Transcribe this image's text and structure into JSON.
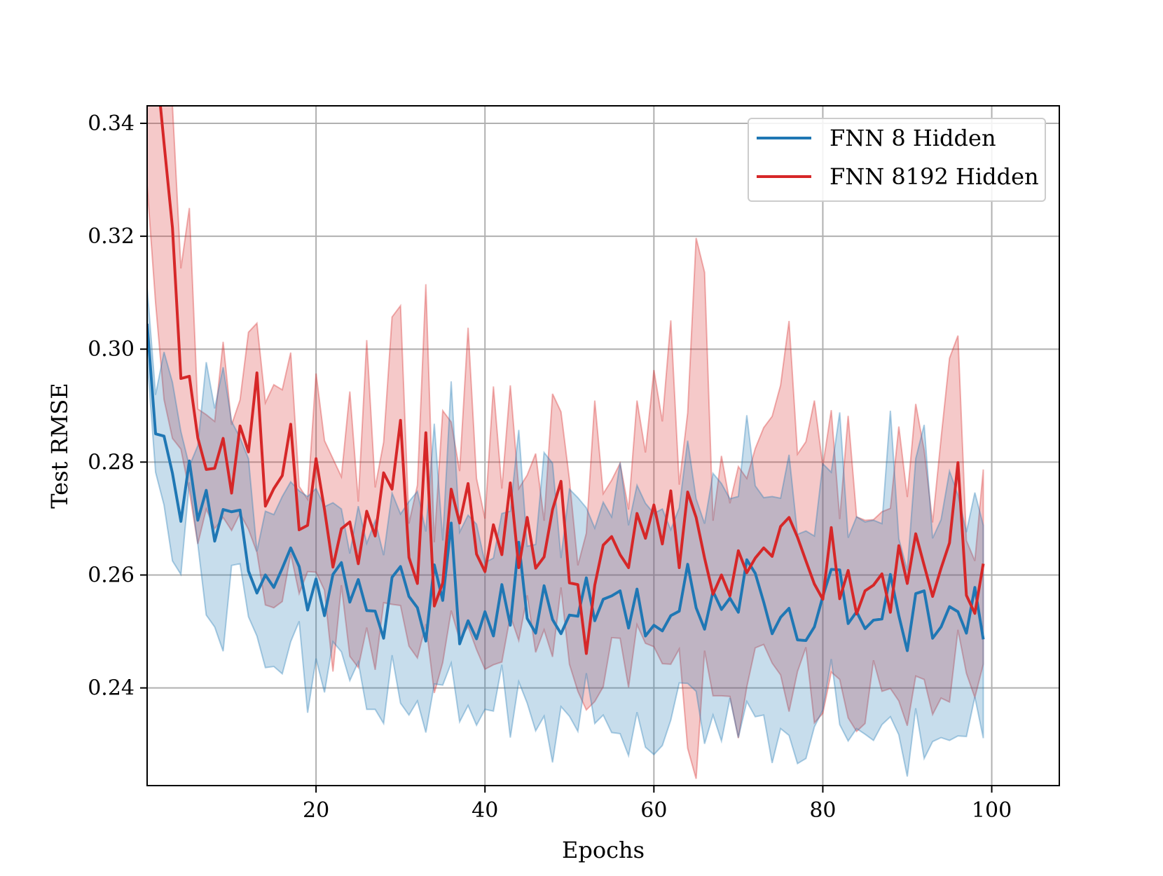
{
  "chart_data": {
    "type": "line",
    "title": "",
    "xlabel": "Epochs",
    "ylabel": "Test RMSE",
    "xlim": [
      0,
      108
    ],
    "ylim": [
      0.2227,
      0.3431
    ],
    "xticks": [
      20,
      40,
      60,
      80,
      100
    ],
    "xtick_labels": [
      "20",
      "40",
      "60",
      "80",
      "100"
    ],
    "yticks": [
      0.24,
      0.26,
      0.28,
      0.3,
      0.32,
      0.34
    ],
    "ytick_labels": [
      "0.24",
      "0.26",
      "0.28",
      "0.30",
      "0.32",
      "0.34"
    ],
    "grid": true,
    "legend_position": "top-right",
    "x": [
      0,
      1,
      2,
      3,
      4,
      5,
      6,
      7,
      8,
      9,
      10,
      11,
      12,
      13,
      14,
      15,
      16,
      17,
      18,
      19,
      20,
      21,
      22,
      23,
      24,
      25,
      26,
      27,
      28,
      29,
      30,
      31,
      32,
      33,
      34,
      35,
      36,
      37,
      38,
      39,
      40,
      41,
      42,
      43,
      44,
      45,
      46,
      47,
      48,
      49,
      50,
      51,
      52,
      53,
      54,
      55,
      56,
      57,
      58,
      59,
      60,
      61,
      62,
      63,
      64,
      65,
      66,
      67,
      68,
      69,
      70,
      71,
      72,
      73,
      74,
      75,
      76,
      77,
      78,
      79,
      80,
      81,
      82,
      83,
      84,
      85,
      86,
      87,
      88,
      89,
      90,
      91,
      92,
      93,
      94,
      95,
      96,
      97,
      98,
      99
    ],
    "series": [
      {
        "name": "FNN 8 Hidden",
        "color": "#1f77b4",
        "fill_color": "#1f77b4",
        "values": [
          0.3045,
          0.285,
          0.2846,
          0.278,
          0.2695,
          0.2802,
          0.2697,
          0.275,
          0.266,
          0.2716,
          0.2712,
          0.2715,
          0.2607,
          0.2568,
          0.26,
          0.2578,
          0.2612,
          0.2648,
          0.2615,
          0.2538,
          0.2593,
          0.2528,
          0.2601,
          0.2622,
          0.2552,
          0.2592,
          0.2537,
          0.2536,
          0.2488,
          0.2596,
          0.2615,
          0.2562,
          0.2542,
          0.2483,
          0.2618,
          0.2555,
          0.2692,
          0.2478,
          0.2519,
          0.2487,
          0.2535,
          0.2492,
          0.2583,
          0.2511,
          0.2658,
          0.2523,
          0.2497,
          0.2581,
          0.2521,
          0.2496,
          0.2529,
          0.2527,
          0.2595,
          0.2519,
          0.2557,
          0.2563,
          0.2572,
          0.2506,
          0.2575,
          0.2492,
          0.2511,
          0.2501,
          0.2528,
          0.2536,
          0.2619,
          0.2542,
          0.2504,
          0.2571,
          0.2539,
          0.2559,
          0.2534,
          0.2627,
          0.2603,
          0.2552,
          0.2496,
          0.2525,
          0.2541,
          0.2485,
          0.2484,
          0.2508,
          0.2562,
          0.261,
          0.2609,
          0.2514,
          0.2535,
          0.2505,
          0.252,
          0.2522,
          0.2601,
          0.2528,
          0.2466,
          0.2567,
          0.2572,
          0.2488,
          0.2508,
          0.2544,
          0.2535,
          0.2497,
          0.2578,
          0.2486
        ]
      },
      {
        "name": "FNN 8192 Hidden",
        "color": "#d62728",
        "fill_color": "#d62728",
        "values": [
          0.36,
          0.352,
          0.3365,
          0.3215,
          0.2948,
          0.2952,
          0.2843,
          0.2787,
          0.2789,
          0.2842,
          0.2745,
          0.2864,
          0.2818,
          0.2958,
          0.2722,
          0.2753,
          0.2776,
          0.2867,
          0.268,
          0.2688,
          0.2806,
          0.2716,
          0.2614,
          0.2682,
          0.2694,
          0.262,
          0.2713,
          0.2669,
          0.2781,
          0.2752,
          0.2874,
          0.2631,
          0.2585,
          0.2852,
          0.2545,
          0.2586,
          0.2752,
          0.2692,
          0.2762,
          0.2637,
          0.2606,
          0.2689,
          0.2636,
          0.2763,
          0.2613,
          0.2702,
          0.2612,
          0.2632,
          0.2716,
          0.2766,
          0.2586,
          0.2583,
          0.2461,
          0.2582,
          0.2653,
          0.2668,
          0.2636,
          0.2613,
          0.2709,
          0.2665,
          0.2724,
          0.2655,
          0.2749,
          0.2613,
          0.2747,
          0.2702,
          0.263,
          0.2566,
          0.26,
          0.2563,
          0.2643,
          0.2604,
          0.263,
          0.2648,
          0.2633,
          0.2686,
          0.2702,
          0.2667,
          0.2625,
          0.2584,
          0.2557,
          0.2684,
          0.2558,
          0.2608,
          0.2531,
          0.2572,
          0.2582,
          0.2602,
          0.2534,
          0.2652,
          0.2585,
          0.2673,
          0.2617,
          0.2562,
          0.2612,
          0.2657,
          0.2799,
          0.2564,
          0.2532,
          0.262
        ]
      }
    ],
    "bands": [
      {
        "series": "FNN 8 Hidden",
        "upper": [
          0.311,
          0.2919,
          0.2995,
          0.2941,
          0.2854,
          0.2793,
          0.2829,
          0.2977,
          0.2895,
          0.2968,
          0.2872,
          0.2843,
          0.2806,
          0.2642,
          0.2713,
          0.2707,
          0.2739,
          0.2765,
          0.2749,
          0.2739,
          0.2753,
          0.2721,
          0.2728,
          0.2717,
          0.2638,
          0.2722,
          0.2656,
          0.2696,
          0.2635,
          0.2745,
          0.2708,
          0.273,
          0.2748,
          0.2677,
          0.2868,
          0.2661,
          0.2943,
          0.2676,
          0.2706,
          0.269,
          0.2622,
          0.263,
          0.2709,
          0.2713,
          0.2857,
          0.2651,
          0.2654,
          0.2817,
          0.2798,
          0.263,
          0.2752,
          0.2737,
          0.2719,
          0.2683,
          0.2729,
          0.2703,
          0.2799,
          0.2688,
          0.2759,
          0.2727,
          0.2709,
          0.2717,
          0.268,
          0.2719,
          0.2838,
          0.2735,
          0.2691,
          0.278,
          0.2762,
          0.2735,
          0.2739,
          0.2883,
          0.2758,
          0.2737,
          0.2739,
          0.2736,
          0.2813,
          0.2672,
          0.2678,
          0.2669,
          0.2797,
          0.2782,
          0.2888,
          0.2666,
          0.2703,
          0.2694,
          0.2697,
          0.2691,
          0.2891,
          0.2664,
          0.2608,
          0.2806,
          0.2866,
          0.2665,
          0.2698,
          0.2784,
          0.2742,
          0.2676,
          0.2746,
          0.2688
        ]
      },
      {
        "series": "FNN 8 Hidden",
        "lower": [
          0.2983,
          0.2782,
          0.2724,
          0.2625,
          0.2601,
          0.2764,
          0.2655,
          0.2529,
          0.2508,
          0.2465,
          0.2617,
          0.262,
          0.2526,
          0.2492,
          0.2436,
          0.2438,
          0.2425,
          0.2482,
          0.2518,
          0.2356,
          0.2452,
          0.2392,
          0.2482,
          0.2464,
          0.2413,
          0.2446,
          0.2362,
          0.2362,
          0.2337,
          0.2458,
          0.2373,
          0.2352,
          0.2377,
          0.2321,
          0.2407,
          0.2405,
          0.2444,
          0.234,
          0.2369,
          0.2334,
          0.2362,
          0.2359,
          0.2441,
          0.2312,
          0.2411,
          0.2373,
          0.2324,
          0.235,
          0.2268,
          0.2367,
          0.235,
          0.2323,
          0.2426,
          0.2337,
          0.2352,
          0.2321,
          0.2319,
          0.228,
          0.2357,
          0.2295,
          0.2282,
          0.2298,
          0.2343,
          0.2409,
          0.2408,
          0.2394,
          0.2301,
          0.2352,
          0.2306,
          0.2382,
          0.2312,
          0.2376,
          0.2349,
          0.2352,
          0.2267,
          0.2328,
          0.2316,
          0.2266,
          0.2275,
          0.2331,
          0.2361,
          0.2451,
          0.2335,
          0.2306,
          0.2328,
          0.2318,
          0.2307,
          0.2335,
          0.2349,
          0.2317,
          0.2243,
          0.2364,
          0.2275,
          0.2305,
          0.2312,
          0.2307,
          0.2315,
          0.2314,
          0.2384,
          0.2311
        ]
      },
      {
        "series": "FNN 8192 Hidden",
        "upper": [
          0.36,
          0.36,
          0.36,
          0.3431,
          0.3143,
          0.325,
          0.2894,
          0.2884,
          0.2872,
          0.3013,
          0.2866,
          0.291,
          0.303,
          0.3046,
          0.2905,
          0.2937,
          0.2928,
          0.2994,
          0.2757,
          0.2734,
          0.2957,
          0.2838,
          0.2806,
          0.2774,
          0.2925,
          0.273,
          0.3016,
          0.2755,
          0.2835,
          0.3057,
          0.3077,
          0.2691,
          0.2759,
          0.3115,
          0.2658,
          0.2891,
          0.2871,
          0.2784,
          0.3038,
          0.2771,
          0.27,
          0.2934,
          0.2753,
          0.2936,
          0.2753,
          0.2777,
          0.2815,
          0.2696,
          0.2921,
          0.2889,
          0.2769,
          0.2617,
          0.2674,
          0.2909,
          0.2744,
          0.2768,
          0.2798,
          0.2716,
          0.2909,
          0.2817,
          0.2963,
          0.2872,
          0.3051,
          0.276,
          0.2887,
          0.3197,
          0.3136,
          0.2696,
          0.2811,
          0.2727,
          0.2792,
          0.2771,
          0.2824,
          0.2861,
          0.2881,
          0.2936,
          0.305,
          0.2814,
          0.2836,
          0.2909,
          0.2793,
          0.2892,
          0.2699,
          0.2882,
          0.2703,
          0.2697,
          0.2698,
          0.2712,
          0.2718,
          0.2863,
          0.2738,
          0.2903,
          0.2821,
          0.2693,
          0.2842,
          0.2984,
          0.3024,
          0.2661,
          0.2625,
          0.2787
        ]
      },
      {
        "series": "FNN 8192 Hidden",
        "lower": [
          0.329,
          0.3082,
          0.2911,
          0.2842,
          0.2823,
          0.2748,
          0.2655,
          0.2717,
          0.2682,
          0.2702,
          0.2679,
          0.2709,
          0.2681,
          0.264,
          0.2547,
          0.2542,
          0.2553,
          0.2638,
          0.2567,
          0.2606,
          0.2605,
          0.2573,
          0.2429,
          0.2582,
          0.2456,
          0.2436,
          0.2507,
          0.2432,
          0.2551,
          0.2548,
          0.2546,
          0.2474,
          0.2453,
          0.2513,
          0.2391,
          0.2445,
          0.2537,
          0.2485,
          0.2509,
          0.2468,
          0.2433,
          0.2441,
          0.2446,
          0.2528,
          0.2484,
          0.2564,
          0.2463,
          0.2503,
          0.2455,
          0.2578,
          0.2442,
          0.2394,
          0.2361,
          0.2376,
          0.2402,
          0.2489,
          0.2488,
          0.2401,
          0.2512,
          0.2479,
          0.2473,
          0.2443,
          0.2442,
          0.2469,
          0.2293,
          0.2239,
          0.2466,
          0.2386,
          0.2386,
          0.2385,
          0.2311,
          0.2402,
          0.2471,
          0.2477,
          0.2444,
          0.2423,
          0.2358,
          0.2429,
          0.2472,
          0.2338,
          0.2355,
          0.2428,
          0.2415,
          0.2347,
          0.2323,
          0.2337,
          0.2449,
          0.2394,
          0.2399,
          0.2377,
          0.2333,
          0.2421,
          0.2415,
          0.2353,
          0.2382,
          0.2375,
          0.2503,
          0.2426,
          0.2383,
          0.2442
        ]
      }
    ]
  }
}
